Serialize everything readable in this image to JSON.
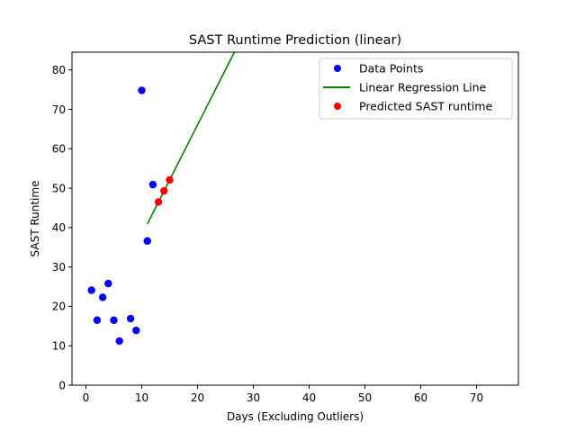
{
  "chart_data": {
    "type": "scatter",
    "title": "SAST Runtime Prediction (linear)",
    "xlabel": "Days (Excluding Outliers)",
    "ylabel": "SAST Runtime",
    "xlim": [
      -2.5,
      77.5
    ],
    "ylim": [
      0,
      84.5
    ],
    "xticks": [
      0,
      10,
      20,
      30,
      40,
      50,
      60,
      70
    ],
    "yticks": [
      0,
      10,
      20,
      30,
      40,
      50,
      60,
      70,
      80
    ],
    "grid": false,
    "legend_position": "top-right",
    "series": [
      {
        "name": "Data Points",
        "kind": "scatter",
        "color": "#0000ff",
        "points": [
          [
            1,
            24.1
          ],
          [
            2,
            16.5
          ],
          [
            3,
            22.3
          ],
          [
            4,
            25.8
          ],
          [
            5,
            16.5
          ],
          [
            6,
            11.2
          ],
          [
            8,
            16.9
          ],
          [
            9,
            13.9
          ],
          [
            10,
            74.8
          ],
          [
            11,
            36.6
          ],
          [
            12,
            50.9
          ]
        ]
      },
      {
        "name": "Linear Regression Line",
        "kind": "line",
        "color": "#008000",
        "points": [
          [
            11,
            40.9
          ],
          [
            26.6,
            84.5
          ]
        ]
      },
      {
        "name": "Predicted SAST runtime",
        "kind": "scatter",
        "color": "#ff0000",
        "points": [
          [
            13,
            46.5
          ],
          [
            14,
            49.3
          ],
          [
            15,
            52.1
          ]
        ]
      }
    ]
  }
}
